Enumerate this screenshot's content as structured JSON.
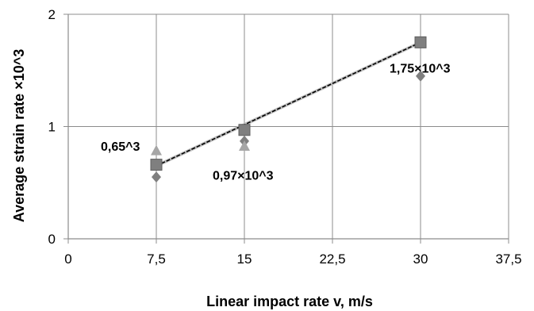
{
  "chart_data": {
    "type": "scatter",
    "xlabel": "Linear impact rate v, m/s",
    "ylabel": "Average strain rate ×10^3",
    "xlim": [
      0,
      37.5
    ],
    "ylim": [
      0,
      2
    ],
    "x_ticks": [
      "0",
      "7,5",
      "15",
      "22,5",
      "30",
      "37,5"
    ],
    "y_ticks": [
      "0",
      "1",
      "2"
    ],
    "grid": true,
    "legend": "none",
    "series": [
      {
        "marker": "diamond",
        "color": "#7f7f7f",
        "points": [
          {
            "x": 7.5,
            "y": 0.55
          },
          {
            "x": 15,
            "y": 0.87
          },
          {
            "x": 30,
            "y": 1.45
          }
        ]
      },
      {
        "marker": "triangle",
        "color": "#a6a6a6",
        "points": [
          {
            "x": 7.5,
            "y": 0.78
          },
          {
            "x": 15,
            "y": 0.82
          }
        ]
      },
      {
        "marker": "square",
        "color": "#7f7f7f",
        "points": [
          {
            "x": 7.5,
            "y": 0.66
          },
          {
            "x": 15,
            "y": 0.97
          },
          {
            "x": 30,
            "y": 1.75
          }
        ]
      }
    ],
    "trendline": {
      "from": {
        "x": 7.5,
        "y": 0.65
      },
      "to": {
        "x": 30,
        "y": 1.75
      },
      "color": "#000000"
    },
    "annotations": [
      {
        "text": "0,65^3",
        "x": 7.5,
        "y": 0.65
      },
      {
        "text": "0,97×10^3",
        "x": 15,
        "y": 0.97
      },
      {
        "text": "1,75×10^3",
        "x": 30,
        "y": 1.75
      }
    ]
  }
}
